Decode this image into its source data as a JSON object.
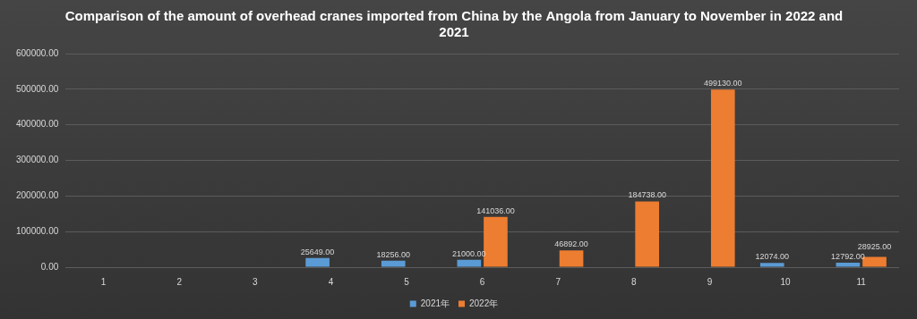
{
  "chart_data": {
    "type": "bar",
    "title": "Comparison of the amount of overhead cranes imported from China by the Angola from January to November in 2022 and 2021",
    "categories": [
      "1",
      "2",
      "3",
      "4",
      "5",
      "6",
      "7",
      "8",
      "9",
      "10",
      "11"
    ],
    "series": [
      {
        "name": "2021年",
        "color": "#5b9bd5",
        "values": [
          null,
          null,
          null,
          25649,
          18256,
          21000,
          null,
          null,
          null,
          12074,
          12792
        ],
        "value_labels": [
          null,
          null,
          null,
          "25649.00",
          "18256.00",
          "21000.00",
          null,
          null,
          null,
          "12074.00",
          "12792.00"
        ]
      },
      {
        "name": "2022年",
        "color": "#ed7d31",
        "values": [
          null,
          null,
          null,
          null,
          null,
          141036,
          46892,
          184738,
          499130,
          null,
          28925
        ],
        "value_labels": [
          null,
          null,
          null,
          null,
          null,
          "141036.00",
          "46892.00",
          "184738.00",
          "499130.00",
          null,
          "28925.00"
        ]
      }
    ],
    "ylim": [
      0,
      600000
    ],
    "yticks": [
      {
        "value": 0,
        "label": "0.00"
      },
      {
        "value": 100000,
        "label": "100000.00"
      },
      {
        "value": 200000,
        "label": "200000.00"
      },
      {
        "value": 300000,
        "label": "300000.00"
      },
      {
        "value": 400000,
        "label": "400000.00"
      },
      {
        "value": 500000,
        "label": "500000.00"
      },
      {
        "value": 600000,
        "label": "600000.00"
      }
    ],
    "grid": true,
    "legend": "bottom",
    "data_labels": true
  }
}
